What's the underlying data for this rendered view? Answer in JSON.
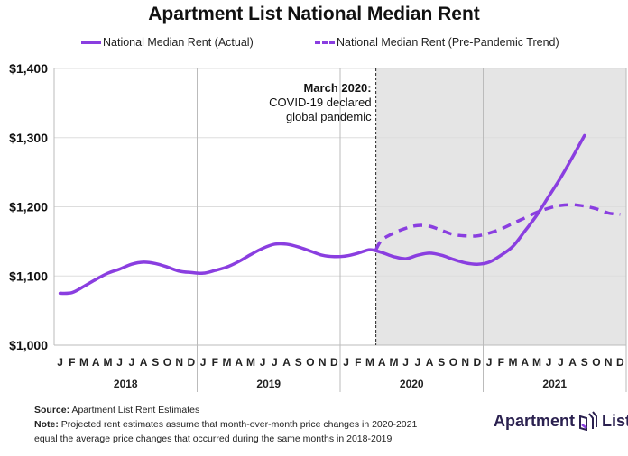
{
  "chart_data": {
    "type": "line",
    "title": "Apartment List National Median Rent",
    "xlabel": "",
    "ylabel": "",
    "ylim": [
      1000,
      1400
    ],
    "yticks": [
      "$1,000",
      "$1,100",
      "$1,200",
      "$1,300",
      "$1,400"
    ],
    "ytick_values": [
      1000,
      1100,
      1200,
      1300,
      1400
    ],
    "grid": true,
    "legend_placement": "top",
    "month_labels": [
      "J",
      "F",
      "M",
      "A",
      "M",
      "J",
      "J",
      "A",
      "S",
      "O",
      "N",
      "D"
    ],
    "years": [
      "2018",
      "2019",
      "2020",
      "2021"
    ],
    "shaded_region": {
      "from": "2020-03",
      "to": "2021-12",
      "color": "#e5e5e5"
    },
    "annotation": {
      "date": "2020-03",
      "title": "March 2020:",
      "lines": [
        "COVID-19 declared",
        "global pandemic"
      ]
    },
    "series": [
      {
        "name": "National Median Rent (Actual)",
        "style": "solid",
        "color": "#8a3ee0",
        "start": "2018-01",
        "values": [
          1075,
          1076,
          1085,
          1095,
          1104,
          1110,
          1117,
          1120,
          1118,
          1113,
          1107,
          1105,
          1104,
          1108,
          1113,
          1121,
          1131,
          1140,
          1146,
          1146,
          1142,
          1136,
          1130,
          1128,
          1129,
          1133,
          1138,
          1134,
          1128,
          1125,
          1130,
          1133,
          1130,
          1124,
          1119,
          1117,
          1120,
          1130,
          1143,
          1165,
          1188,
          1215,
          1242,
          1272,
          1303
        ]
      },
      {
        "name": "National Median Rent (Pre-Pandemic Trend)",
        "style": "dashed",
        "color": "#8a3ee0",
        "start": "2020-03",
        "values": [
          1138,
          1152,
          1162,
          1169,
          1173,
          1172,
          1166,
          1160,
          1158,
          1158,
          1162,
          1168,
          1176,
          1184,
          1192,
          1198,
          1202,
          1203,
          1201,
          1197,
          1191,
          1189
        ]
      }
    ]
  },
  "footer": {
    "source_label": "Source:",
    "source_text": "Apartment List Rent Estimates",
    "note_label": "Note:",
    "note_line1": "Projected rent estimates assume that month-over-month price changes in 2020-2021",
    "note_line2": "equal the average price changes that occurred during the same months in 2018-2019"
  },
  "logo": {
    "left": "Apartment",
    "right": "List",
    "color": "#2b2150"
  }
}
